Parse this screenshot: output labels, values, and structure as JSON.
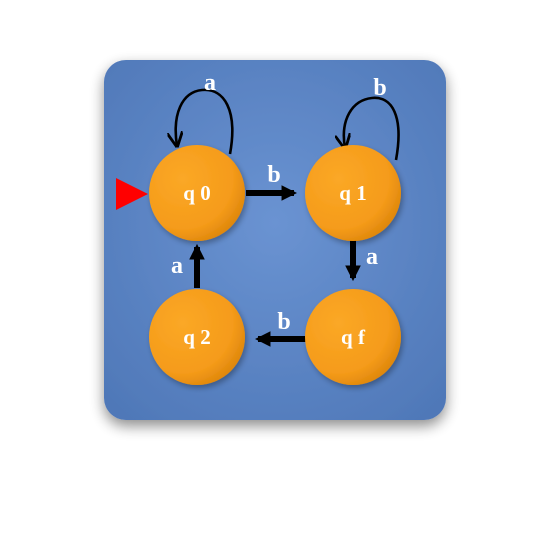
{
  "diagram": {
    "colors": {
      "panel": "#5b84c4",
      "state_fill": "#f59b1a",
      "state_shade": "#d97e08",
      "arrow": "#000000",
      "start_marker": "#ff0000",
      "text": "#ffffff"
    },
    "start_state": "q0",
    "states": [
      {
        "id": "q0",
        "label": "q 0"
      },
      {
        "id": "q1",
        "label": "q 1"
      },
      {
        "id": "q2",
        "label": "q 2"
      },
      {
        "id": "qf",
        "label": "q f"
      }
    ],
    "transitions": [
      {
        "from": "q0",
        "to": "q0",
        "label": "a"
      },
      {
        "from": "q1",
        "to": "q1",
        "label": "b"
      },
      {
        "from": "q0",
        "to": "q1",
        "label": "b"
      },
      {
        "from": "q1",
        "to": "qf",
        "label": "a"
      },
      {
        "from": "qf",
        "to": "q2",
        "label": "b"
      },
      {
        "from": "q2",
        "to": "q0",
        "label": "a"
      }
    ]
  }
}
